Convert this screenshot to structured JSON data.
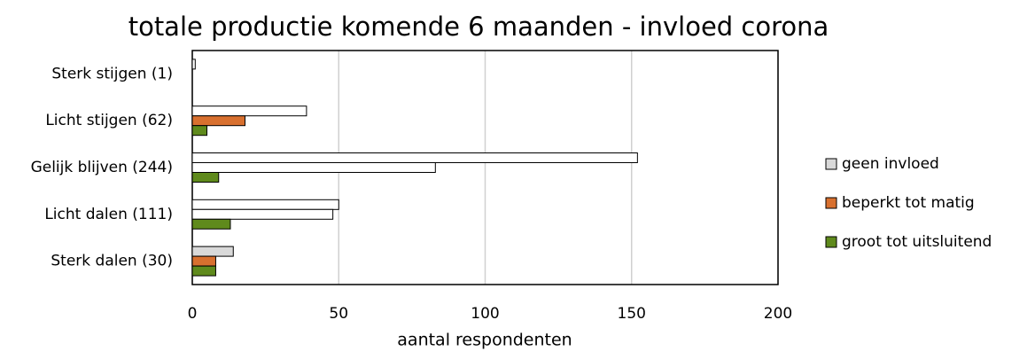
{
  "chart_data": {
    "type": "bar",
    "orientation": "horizontal",
    "title": "totale productie komende 6 maanden - invloed corona",
    "xlabel": "aantal respondenten",
    "categories": [
      "Sterk stijgen (1)",
      "Licht stijgen (62)",
      "Gelijk blijven (244)",
      "Licht dalen (111)",
      "Sterk dalen (30)"
    ],
    "series": [
      {
        "name": "geen invloed",
        "color": "#d9d9d9",
        "colors": [
          "#ffffff",
          "#ffffff",
          "#ffffff",
          "#ffffff",
          "#d9d9d9"
        ],
        "values": [
          1,
          39,
          152,
          50,
          14
        ]
      },
      {
        "name": "beperkt tot matig",
        "color": "#d8702f",
        "colors": [
          "#d8702f",
          "#d8702f",
          "#ffffff",
          "#ffffff",
          "#d8702f"
        ],
        "values": [
          0,
          18,
          83,
          48,
          8
        ]
      },
      {
        "name": "groot tot uitsluitend",
        "color": "#5f8a1c",
        "colors": [
          "#5f8a1c",
          "#5f8a1c",
          "#5f8a1c",
          "#5f8a1c",
          "#5f8a1c"
        ],
        "values": [
          0,
          5,
          9,
          13,
          8
        ]
      }
    ],
    "xlim": [
      0,
      200
    ],
    "xticks": [
      0,
      50,
      100,
      150,
      200
    ],
    "grid": true,
    "legend": "right"
  }
}
